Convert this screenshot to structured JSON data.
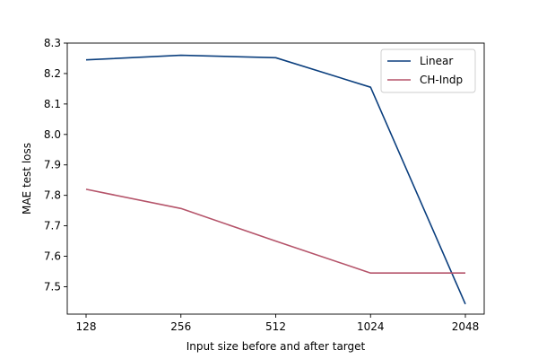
{
  "chart_data": {
    "type": "line",
    "title": "",
    "xlabel": "Input size before and after target",
    "ylabel": "MAE test loss",
    "categories": [
      "128",
      "256",
      "512",
      "1024",
      "2048"
    ],
    "ylim": [
      7.41,
      8.3
    ],
    "yticks": [
      "7.5",
      "7.6",
      "7.7",
      "7.8",
      "7.9",
      "8.0",
      "8.1",
      "8.2",
      "8.3"
    ],
    "grid": false,
    "legend": "top-right",
    "series": [
      {
        "name": "Linear",
        "color": "#0b3f7e",
        "values": [
          8.245,
          8.26,
          8.252,
          8.155,
          7.443
        ]
      },
      {
        "name": "CH-Indp",
        "color": "#b5546a",
        "values": [
          7.82,
          7.757,
          7.65,
          7.545,
          7.545
        ]
      }
    ]
  }
}
